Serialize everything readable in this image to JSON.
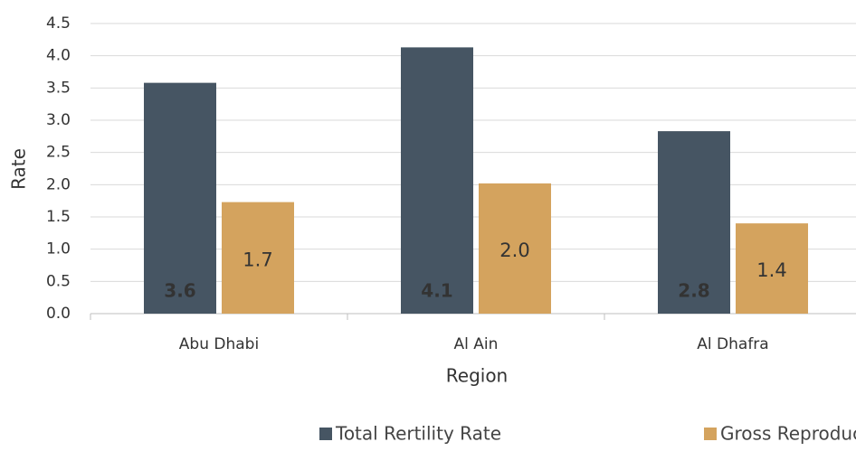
{
  "chart_data": {
    "type": "bar",
    "categories": [
      "Abu Dhabi",
      "Al Ain",
      "Al Dhafra"
    ],
    "series": [
      {
        "name": "Total Rertility Rate",
        "color": "#465563",
        "values": [
          3.58,
          4.13,
          2.83
        ],
        "value_labels": [
          "3.6",
          "4.1",
          "2.8"
        ]
      },
      {
        "name": "Gross Reproduction Rate",
        "color": "#d4a35e",
        "values": [
          1.73,
          2.02,
          1.4
        ],
        "value_labels": [
          "1.7",
          "2.0",
          "1.4"
        ]
      }
    ],
    "ylabel": "Rate",
    "xlabel": "Region",
    "ylim": [
      0,
      4.5
    ],
    "yticks": [
      {
        "value": 0,
        "label": "0.0"
      },
      {
        "value": 0.5,
        "label": "0.5"
      },
      {
        "value": 1,
        "label": "1.0"
      },
      {
        "value": 1.5,
        "label": "1.5"
      },
      {
        "value": 2,
        "label": "2.0"
      },
      {
        "value": 2.5,
        "label": "2.5"
      },
      {
        "value": 3,
        "label": "3.0"
      },
      {
        "value": 3.5,
        "label": "3.5"
      },
      {
        "value": 4,
        "label": "4.0"
      },
      {
        "value": 4.5,
        "label": "4.5"
      }
    ],
    "grid": true,
    "legend": "bottom"
  }
}
